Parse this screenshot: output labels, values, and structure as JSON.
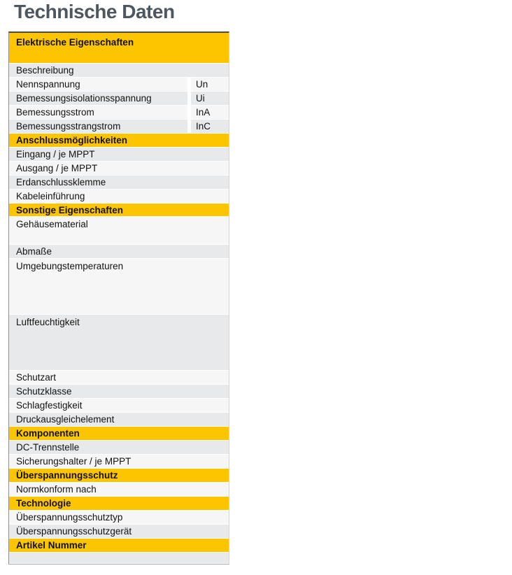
{
  "page": {
    "title": "Technische Daten"
  },
  "colors": {
    "accent_yellow": "#FDC500",
    "row_gray": "#E8E9EA",
    "row_light": "#F6F6F7",
    "title_color": "#4E5660",
    "text_color": "#121212"
  },
  "table": {
    "rows": [
      {
        "type": "section",
        "label": "Elektrische Eigenschaften",
        "height": 44
      },
      {
        "type": "row",
        "label": "Beschreibung",
        "shade": "gray"
      },
      {
        "type": "row",
        "label": "Nennspannung",
        "value": "Un",
        "shade": "light",
        "twocol": true
      },
      {
        "type": "row",
        "label": "Bemessungsisolationsspannung",
        "value": "Ui",
        "shade": "gray",
        "twocol": true
      },
      {
        "type": "row",
        "label": "Bemessungsstrom",
        "value": "InA",
        "shade": "light",
        "twocol": true
      },
      {
        "type": "row",
        "label": "Bemessungsstrangstrom",
        "value": "InC",
        "shade": "gray",
        "twocol": true
      },
      {
        "type": "section",
        "label": "Anschlussmöglichkeiten"
      },
      {
        "type": "row",
        "label": "Eingang / je MPPT",
        "shade": "gray"
      },
      {
        "type": "row",
        "label": "Ausgang / je MPPT",
        "shade": "light"
      },
      {
        "type": "row",
        "label": "Erdanschlussklemme",
        "shade": "gray"
      },
      {
        "type": "row",
        "label": "Kabeleinführung",
        "shade": "light"
      },
      {
        "type": "section",
        "label": "Sonstige Eigenschaften",
        "height": 19
      },
      {
        "type": "row",
        "label": "Gehäusematerial",
        "shade": "light",
        "height": 40
      },
      {
        "type": "row",
        "label": "Abmaße",
        "shade": "gray"
      },
      {
        "type": "row",
        "label": "Umgebungstemperaturen",
        "shade": "light",
        "height": 80
      },
      {
        "type": "row",
        "label": "Luftfeuchtigkeit",
        "shade": "gray",
        "height": 80
      },
      {
        "type": "row",
        "label": "Schutzart",
        "shade": "light"
      },
      {
        "type": "row",
        "label": "Schutzklasse",
        "shade": "gray"
      },
      {
        "type": "row",
        "label": "Schlagfestigkeit",
        "shade": "light"
      },
      {
        "type": "row",
        "label": "Druckausgleichelement",
        "shade": "gray"
      },
      {
        "type": "section",
        "label": "Komponenten"
      },
      {
        "type": "row",
        "label": "DC-Trennstelle",
        "shade": "gray"
      },
      {
        "type": "row",
        "label": "Sicherungshalter / je MPPT",
        "shade": "light"
      },
      {
        "type": "section",
        "label": "Überspannungsschutz"
      },
      {
        "type": "row",
        "label": "Normkonform nach",
        "shade": "light"
      },
      {
        "type": "section",
        "label": "Technologie"
      },
      {
        "type": "row",
        "label": "Überspannungsschutztyp",
        "shade": "light"
      },
      {
        "type": "row",
        "label": "Überspannungsschutzgerät",
        "shade": "gray"
      },
      {
        "type": "section",
        "label": "Artikel Nummer"
      },
      {
        "type": "row",
        "label": "",
        "shade": "gray",
        "height": 16
      }
    ]
  }
}
